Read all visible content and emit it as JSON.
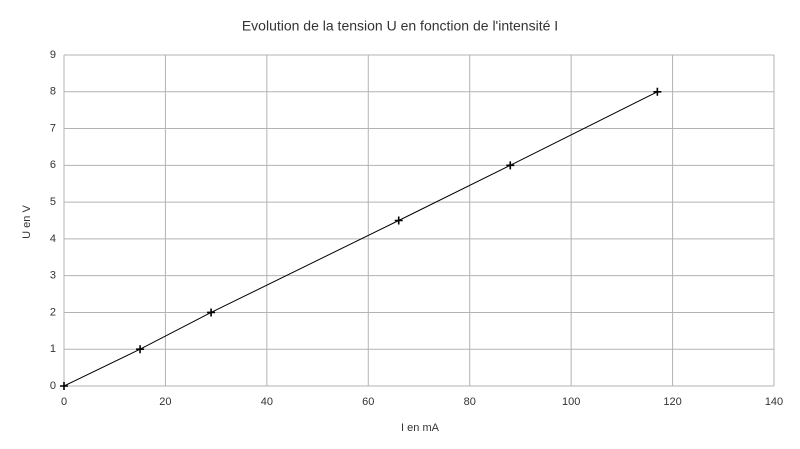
{
  "chart_data": {
    "type": "line",
    "title": "Evolution de la tension U en fonction de l'intensité I",
    "x_label": "I en mA",
    "y_label": "U en V",
    "x": [
      0,
      15,
      29,
      66,
      88,
      117
    ],
    "values": [
      0,
      1,
      2,
      4.5,
      6,
      8
    ],
    "color": "#000000",
    "marker": "+",
    "xlim": [
      0,
      140
    ],
    "xticks": [
      0,
      20,
      40,
      60,
      80,
      100,
      120,
      140
    ],
    "ylim": [
      0,
      9
    ],
    "yticks": [
      0,
      1,
      2,
      3,
      4,
      5,
      6,
      7,
      8,
      9
    ],
    "grid": true
  }
}
